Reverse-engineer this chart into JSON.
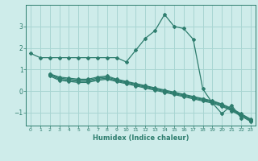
{
  "title": "",
  "xlabel": "Humidex (Indice chaleur)",
  "ylabel": "",
  "background_color": "#ceecea",
  "grid_color": "#a8d5d2",
  "line_color": "#2e7d6e",
  "xlim": [
    -0.5,
    23.5
  ],
  "ylim": [
    -1.6,
    4.0
  ],
  "yticks": [
    -1,
    0,
    1,
    2,
    3
  ],
  "xticks": [
    0,
    1,
    2,
    3,
    4,
    5,
    6,
    7,
    8,
    9,
    10,
    11,
    12,
    13,
    14,
    15,
    16,
    17,
    18,
    19,
    20,
    21,
    22,
    23
  ],
  "lines": [
    {
      "x": [
        0,
        1,
        2,
        3,
        4,
        5,
        6,
        7,
        8,
        9,
        10,
        11,
        12,
        13,
        14,
        15,
        16,
        17,
        18,
        19,
        20,
        21,
        22
      ],
      "y": [
        1.75,
        1.55,
        1.55,
        1.55,
        1.55,
        1.55,
        1.55,
        1.55,
        1.55,
        1.55,
        1.35,
        1.9,
        2.45,
        2.8,
        3.55,
        3.0,
        2.9,
        2.4,
        0.1,
        -0.55,
        -1.05,
        -0.65,
        -1.25
      ]
    },
    {
      "x": [
        2,
        3,
        4,
        5,
        6,
        7,
        8,
        9,
        10,
        11,
        12,
        13,
        14,
        15,
        16,
        17,
        18,
        19,
        20,
        21,
        22,
        23
      ],
      "y": [
        0.8,
        0.65,
        0.6,
        0.55,
        0.55,
        0.65,
        0.7,
        0.55,
        0.45,
        0.35,
        0.25,
        0.15,
        0.05,
        -0.05,
        -0.15,
        -0.25,
        -0.35,
        -0.45,
        -0.6,
        -0.8,
        -1.05,
        -1.3
      ]
    },
    {
      "x": [
        2,
        3,
        4,
        5,
        6,
        7,
        8,
        9,
        10,
        11,
        12,
        13,
        14,
        15,
        16,
        17,
        18,
        19,
        20,
        21,
        22,
        23
      ],
      "y": [
        0.8,
        0.6,
        0.55,
        0.5,
        0.5,
        0.6,
        0.65,
        0.52,
        0.42,
        0.32,
        0.22,
        0.12,
        0.02,
        -0.08,
        -0.18,
        -0.28,
        -0.38,
        -0.48,
        -0.63,
        -0.83,
        -1.08,
        -1.33
      ]
    },
    {
      "x": [
        2,
        3,
        4,
        5,
        6,
        7,
        8,
        9,
        10,
        11,
        12,
        13,
        14,
        15,
        16,
        17,
        18,
        19,
        20,
        21,
        22,
        23
      ],
      "y": [
        0.75,
        0.55,
        0.5,
        0.45,
        0.45,
        0.55,
        0.6,
        0.48,
        0.38,
        0.28,
        0.18,
        0.08,
        -0.02,
        -0.12,
        -0.22,
        -0.32,
        -0.42,
        -0.52,
        -0.67,
        -0.87,
        -1.12,
        -1.37
      ]
    },
    {
      "x": [
        2,
        3,
        4,
        5,
        6,
        7,
        8,
        9,
        10,
        11,
        12,
        13,
        14,
        15,
        16,
        17,
        18,
        19,
        20,
        21,
        22,
        23
      ],
      "y": [
        0.7,
        0.5,
        0.45,
        0.4,
        0.4,
        0.5,
        0.55,
        0.44,
        0.34,
        0.24,
        0.14,
        0.04,
        -0.06,
        -0.16,
        -0.26,
        -0.36,
        -0.46,
        -0.56,
        -0.71,
        -0.91,
        -1.16,
        -1.41
      ]
    }
  ]
}
